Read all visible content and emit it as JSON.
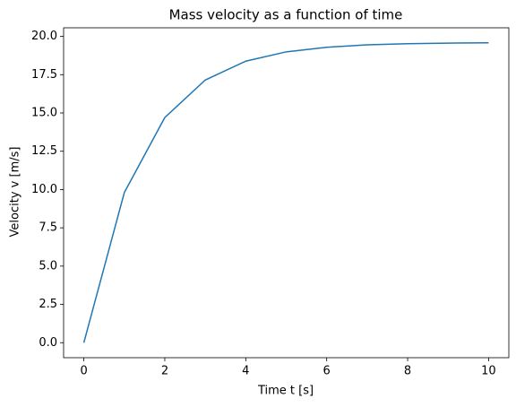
{
  "chart_data": {
    "type": "line",
    "title": "Mass velocity as a function of time",
    "x_label": "Time t [s]",
    "y_label": "Velocity v [m/s]",
    "x": [
      0,
      1,
      2,
      3,
      4,
      5,
      6,
      7,
      8,
      9,
      10
    ],
    "series": [
      {
        "color": "#1f77b4",
        "values": [
          0,
          9.8,
          14.7,
          17.15,
          18.38,
          18.99,
          19.29,
          19.45,
          19.52,
          19.56,
          19.58
        ]
      }
    ],
    "xlim": [
      -0.5,
      10.5
    ],
    "xticks": [
      0,
      2,
      4,
      6,
      8,
      10
    ],
    "ylim": [
      -0.98,
      20.56
    ],
    "yticks": [
      {
        "value": 0,
        "label": "0.0"
      },
      {
        "value": 2.5,
        "label": "2.5"
      },
      {
        "value": 5,
        "label": "5.0"
      },
      {
        "value": 7.5,
        "label": "7.5"
      },
      {
        "value": 10,
        "label": "10.0"
      },
      {
        "value": 12.5,
        "label": "12.5"
      },
      {
        "value": 15,
        "label": "15.0"
      },
      {
        "value": 17.5,
        "label": "17.5"
      },
      {
        "value": 20,
        "label": "20.0"
      }
    ],
    "grid": false
  }
}
